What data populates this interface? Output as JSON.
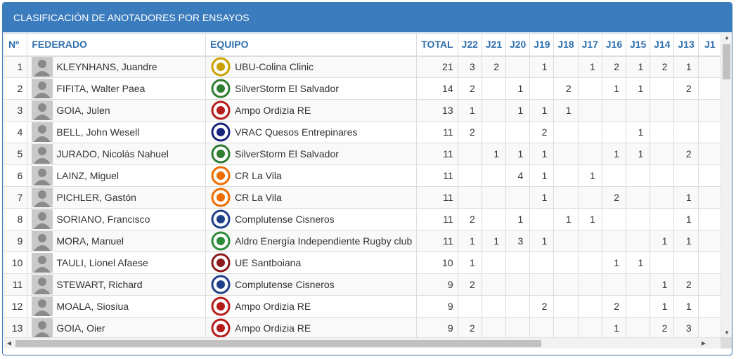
{
  "panel": {
    "title": "CLASIFICACIÓN DE ANOTADORES POR ENSAYOS"
  },
  "columns": {
    "pos": "Nº",
    "federado": "FEDERADO",
    "equipo": "EQUIPO",
    "total": "TOTAL",
    "j": [
      "J22",
      "J21",
      "J20",
      "J19",
      "J18",
      "J17",
      "J16",
      "J15",
      "J14",
      "J13",
      "J1"
    ]
  },
  "rows": [
    {
      "pos": "1",
      "name": "KLEYNHANS, Juandre",
      "team": "UBU-Colina Clinic",
      "total": "21",
      "j": [
        "3",
        "2",
        "",
        "1",
        "",
        "1",
        "2",
        "1",
        "2",
        "1",
        ""
      ]
    },
    {
      "pos": "2",
      "name": "FIFITA, Walter Paea",
      "team": "SilverStorm El Salvador",
      "total": "14",
      "j": [
        "2",
        "",
        "1",
        "",
        "2",
        "",
        "1",
        "1",
        "",
        "2",
        ""
      ]
    },
    {
      "pos": "3",
      "name": "GOIA, Julen",
      "team": "Ampo Ordizia RE",
      "total": "13",
      "j": [
        "1",
        "",
        "1",
        "1",
        "1",
        "",
        "",
        "",
        "",
        "",
        ""
      ]
    },
    {
      "pos": "4",
      "name": "BELL, John Wesell",
      "team": "VRAC Quesos Entrepinares",
      "total": "11",
      "j": [
        "2",
        "",
        "",
        "2",
        "",
        "",
        "",
        "1",
        "",
        "",
        ""
      ]
    },
    {
      "pos": "5",
      "name": "JURADO, Nicolás Nahuel",
      "team": "SilverStorm El Salvador",
      "total": "11",
      "j": [
        "",
        "1",
        "1",
        "1",
        "",
        "",
        "1",
        "1",
        "",
        "2",
        ""
      ]
    },
    {
      "pos": "6",
      "name": "LAINZ, Miguel",
      "team": "CR La Vila",
      "total": "11",
      "j": [
        "",
        "",
        "4",
        "1",
        "",
        "1",
        "",
        "",
        "",
        "",
        ""
      ]
    },
    {
      "pos": "7",
      "name": "PICHLER, Gastón",
      "team": "CR La Vila",
      "total": "11",
      "j": [
        "",
        "",
        "",
        "1",
        "",
        "",
        "2",
        "",
        "",
        "1",
        ""
      ]
    },
    {
      "pos": "8",
      "name": "SORIANO, Francisco",
      "team": "Complutense Cisneros",
      "total": "11",
      "j": [
        "2",
        "",
        "1",
        "",
        "1",
        "1",
        "",
        "",
        "",
        "1",
        ""
      ]
    },
    {
      "pos": "9",
      "name": "MORA, Manuel",
      "team": "Aldro Energía Independiente Rugby club",
      "total": "11",
      "j": [
        "1",
        "1",
        "3",
        "1",
        "",
        "",
        "",
        "",
        "1",
        "1",
        ""
      ]
    },
    {
      "pos": "10",
      "name": "TAULI, Lionel Afaese",
      "team": "UE Santboiana",
      "total": "10",
      "j": [
        "1",
        "",
        "",
        "",
        "",
        "",
        "1",
        "1",
        "",
        "",
        ""
      ]
    },
    {
      "pos": "11",
      "name": "STEWART, Richard",
      "team": "Complutense Cisneros",
      "total": "9",
      "j": [
        "2",
        "",
        "",
        "",
        "",
        "",
        "",
        "",
        "1",
        "2",
        ""
      ]
    },
    {
      "pos": "12",
      "name": "MOALA, Siosiua",
      "team": "Ampo Ordizia RE",
      "total": "9",
      "j": [
        "",
        "",
        "",
        "2",
        "",
        "",
        "2",
        "",
        "1",
        "1",
        ""
      ]
    },
    {
      "pos": "13",
      "name": "GOIA, Oier",
      "team": "Ampo Ordizia RE",
      "total": "9",
      "j": [
        "2",
        "",
        "",
        "",
        "",
        "",
        "1",
        "",
        "2",
        "3",
        ""
      ]
    }
  ]
}
